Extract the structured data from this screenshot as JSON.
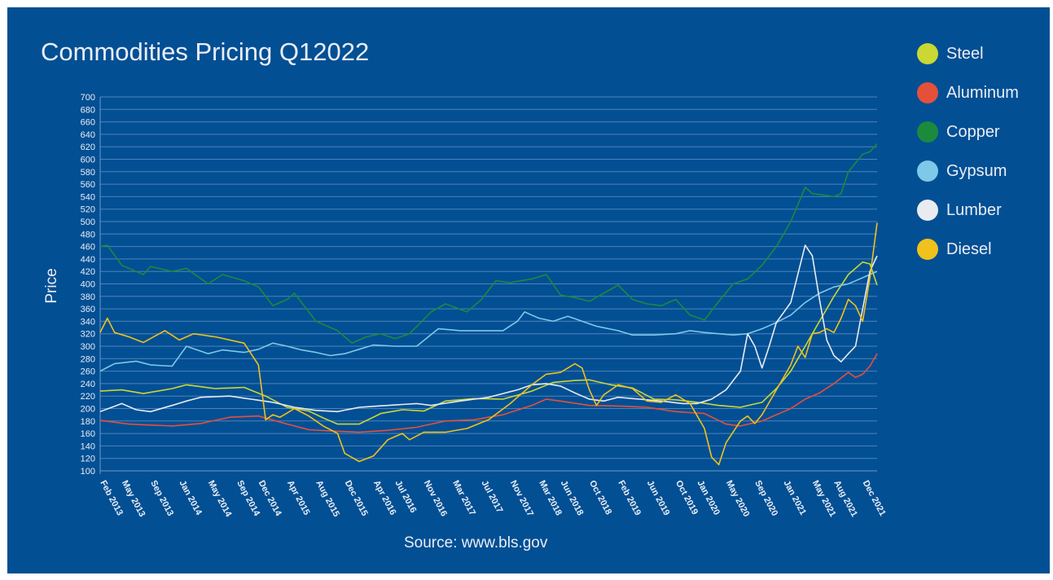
{
  "chart_data": {
    "type": "line",
    "title": "Commodities Pricing Q12022",
    "ylabel": "Price",
    "source": "Source: www.bls.gov",
    "ylim": [
      100,
      700
    ],
    "y_ticks": [
      100,
      120,
      140,
      160,
      180,
      200,
      220,
      240,
      260,
      280,
      300,
      320,
      340,
      360,
      380,
      400,
      420,
      440,
      460,
      480,
      500,
      520,
      540,
      560,
      580,
      600,
      620,
      640,
      660,
      680,
      700
    ],
    "x_ticks": [
      "Feb 2013",
      "May 2013",
      "Sep 2013",
      "Jan 2014",
      "May 2014",
      "Sep 2014",
      "Dec 2014",
      "Apr 2015",
      "Aug 2015",
      "Dec 2015",
      "Apr 2016",
      "Jul 2016",
      "Nov 2016",
      "Mar 2017",
      "Jul 2017",
      "Nov 2017",
      "Mar 2018",
      "Jun 2018",
      "Oct 2018",
      "Feb 2019",
      "Jun 2019",
      "Oct 2019",
      "Jan 2020",
      "May 2020",
      "Sep 2020",
      "Jan 2021",
      "May 2021",
      "Aug 2021",
      "Dec 2021"
    ],
    "x_tick_positions": [
      0,
      3,
      7,
      11,
      15,
      19,
      22,
      26,
      30,
      34,
      38,
      41,
      45,
      49,
      53,
      57,
      61,
      64,
      68,
      72,
      76,
      80,
      83,
      87,
      91,
      95,
      99,
      102,
      106
    ],
    "n_points": 109,
    "grid": true,
    "legend_position": "right",
    "series": [
      {
        "name": "Steel",
        "color": "#c9d833",
        "keyframes": [
          [
            0,
            228
          ],
          [
            3,
            230
          ],
          [
            6,
            224
          ],
          [
            10,
            232
          ],
          [
            12,
            238
          ],
          [
            16,
            232
          ],
          [
            20,
            234
          ],
          [
            23,
            220
          ],
          [
            26,
            202
          ],
          [
            29,
            196
          ],
          [
            31,
            185
          ],
          [
            33,
            175
          ],
          [
            36,
            175
          ],
          [
            39,
            192
          ],
          [
            42,
            198
          ],
          [
            45,
            196
          ],
          [
            48,
            212
          ],
          [
            52,
            216
          ],
          [
            56,
            215
          ],
          [
            60,
            228
          ],
          [
            63,
            242
          ],
          [
            66,
            245
          ],
          [
            68,
            246
          ],
          [
            71,
            238
          ],
          [
            74,
            233
          ],
          [
            77,
            215
          ],
          [
            80,
            214
          ],
          [
            83,
            210
          ],
          [
            86,
            205
          ],
          [
            89,
            202
          ],
          [
            92,
            210
          ],
          [
            94,
            232
          ],
          [
            96,
            260
          ],
          [
            98,
            300
          ],
          [
            100,
            340
          ],
          [
            102,
            380
          ],
          [
            104,
            415
          ],
          [
            106,
            435
          ],
          [
            107,
            432
          ],
          [
            108,
            398
          ]
        ]
      },
      {
        "name": "Aluminum",
        "color": "#e5503b",
        "keyframes": [
          [
            0,
            181
          ],
          [
            4,
            175
          ],
          [
            10,
            172
          ],
          [
            14,
            176
          ],
          [
            18,
            186
          ],
          [
            22,
            188
          ],
          [
            26,
            175
          ],
          [
            29,
            166
          ],
          [
            32,
            164
          ],
          [
            36,
            162
          ],
          [
            40,
            165
          ],
          [
            44,
            170
          ],
          [
            48,
            180
          ],
          [
            52,
            182
          ],
          [
            56,
            190
          ],
          [
            60,
            205
          ],
          [
            62,
            215
          ],
          [
            64,
            212
          ],
          [
            68,
            205
          ],
          [
            72,
            204
          ],
          [
            76,
            202
          ],
          [
            80,
            195
          ],
          [
            84,
            192
          ],
          [
            87,
            175
          ],
          [
            89,
            172
          ],
          [
            92,
            180
          ],
          [
            94,
            190
          ],
          [
            96,
            200
          ],
          [
            98,
            215
          ],
          [
            100,
            225
          ],
          [
            102,
            240
          ],
          [
            104,
            258
          ],
          [
            105,
            250
          ],
          [
            106,
            255
          ],
          [
            107,
            268
          ],
          [
            108,
            288
          ]
        ]
      },
      {
        "name": "Copper",
        "color": "#1c8a3d",
        "keyframes": [
          [
            0,
            460
          ],
          [
            1,
            462
          ],
          [
            3,
            430
          ],
          [
            6,
            415
          ],
          [
            7,
            428
          ],
          [
            10,
            420
          ],
          [
            12,
            425
          ],
          [
            15,
            400
          ],
          [
            17,
            415
          ],
          [
            20,
            405
          ],
          [
            22,
            395
          ],
          [
            24,
            365
          ],
          [
            26,
            375
          ],
          [
            27,
            385
          ],
          [
            30,
            340
          ],
          [
            33,
            325
          ],
          [
            35,
            305
          ],
          [
            37,
            315
          ],
          [
            39,
            320
          ],
          [
            41,
            312
          ],
          [
            43,
            320
          ],
          [
            46,
            355
          ],
          [
            48,
            368
          ],
          [
            51,
            355
          ],
          [
            53,
            375
          ],
          [
            55,
            405
          ],
          [
            57,
            402
          ],
          [
            60,
            408
          ],
          [
            62,
            415
          ],
          [
            64,
            382
          ],
          [
            66,
            378
          ],
          [
            68,
            372
          ],
          [
            70,
            385
          ],
          [
            72,
            398
          ],
          [
            74,
            375
          ],
          [
            76,
            368
          ],
          [
            78,
            365
          ],
          [
            80,
            375
          ],
          [
            82,
            350
          ],
          [
            84,
            342
          ],
          [
            86,
            372
          ],
          [
            88,
            400
          ],
          [
            90,
            408
          ],
          [
            92,
            430
          ],
          [
            94,
            460
          ],
          [
            96,
            500
          ],
          [
            98,
            555
          ],
          [
            99,
            545
          ],
          [
            102,
            540
          ],
          [
            103,
            545
          ],
          [
            104,
            580
          ],
          [
            106,
            608
          ],
          [
            107,
            612
          ],
          [
            108,
            625
          ]
        ]
      },
      {
        "name": "Gypsum",
        "color": "#7ec8e8",
        "keyframes": [
          [
            0,
            260
          ],
          [
            2,
            272
          ],
          [
            5,
            276
          ],
          [
            7,
            270
          ],
          [
            10,
            268
          ],
          [
            12,
            300
          ],
          [
            15,
            288
          ],
          [
            17,
            294
          ],
          [
            20,
            290
          ],
          [
            22,
            295
          ],
          [
            24,
            305
          ],
          [
            26,
            300
          ],
          [
            28,
            294
          ],
          [
            30,
            290
          ],
          [
            32,
            285
          ],
          [
            34,
            288
          ],
          [
            36,
            295
          ],
          [
            38,
            302
          ],
          [
            41,
            300
          ],
          [
            44,
            300
          ],
          [
            47,
            328
          ],
          [
            50,
            325
          ],
          [
            53,
            325
          ],
          [
            56,
            325
          ],
          [
            58,
            340
          ],
          [
            59,
            355
          ],
          [
            61,
            345
          ],
          [
            63,
            340
          ],
          [
            65,
            348
          ],
          [
            67,
            340
          ],
          [
            69,
            332
          ],
          [
            72,
            325
          ],
          [
            74,
            318
          ],
          [
            77,
            318
          ],
          [
            80,
            320
          ],
          [
            82,
            325
          ],
          [
            84,
            322
          ],
          [
            86,
            320
          ],
          [
            88,
            318
          ],
          [
            90,
            320
          ],
          [
            92,
            328
          ],
          [
            94,
            338
          ],
          [
            96,
            350
          ],
          [
            98,
            370
          ],
          [
            100,
            385
          ],
          [
            102,
            395
          ],
          [
            104,
            400
          ],
          [
            106,
            410
          ],
          [
            108,
            420
          ]
        ]
      },
      {
        "name": "Lumber",
        "color": "#e8ecf0",
        "keyframes": [
          [
            0,
            195
          ],
          [
            3,
            208
          ],
          [
            5,
            198
          ],
          [
            7,
            195
          ],
          [
            10,
            205
          ],
          [
            12,
            212
          ],
          [
            14,
            218
          ],
          [
            18,
            220
          ],
          [
            21,
            215
          ],
          [
            24,
            210
          ],
          [
            27,
            202
          ],
          [
            30,
            197
          ],
          [
            33,
            195
          ],
          [
            36,
            202
          ],
          [
            40,
            205
          ],
          [
            44,
            208
          ],
          [
            46,
            205
          ],
          [
            50,
            212
          ],
          [
            54,
            218
          ],
          [
            58,
            230
          ],
          [
            60,
            238
          ],
          [
            62,
            240
          ],
          [
            64,
            236
          ],
          [
            66,
            225
          ],
          [
            68,
            215
          ],
          [
            70,
            212
          ],
          [
            72,
            218
          ],
          [
            75,
            215
          ],
          [
            78,
            212
          ],
          [
            81,
            208
          ],
          [
            83,
            208
          ],
          [
            85,
            215
          ],
          [
            87,
            230
          ],
          [
            89,
            260
          ],
          [
            90,
            320
          ],
          [
            91,
            300
          ],
          [
            92,
            265
          ],
          [
            93,
            300
          ],
          [
            94,
            338
          ],
          [
            96,
            370
          ],
          [
            98,
            462
          ],
          [
            99,
            445
          ],
          [
            100,
            375
          ],
          [
            101,
            310
          ],
          [
            102,
            285
          ],
          [
            103,
            275
          ],
          [
            104,
            288
          ],
          [
            105,
            300
          ],
          [
            106,
            360
          ],
          [
            107,
            420
          ],
          [
            108,
            445
          ]
        ]
      },
      {
        "name": "Diesel",
        "color": "#f0c21b",
        "keyframes": [
          [
            0,
            322
          ],
          [
            1,
            345
          ],
          [
            2,
            322
          ],
          [
            4,
            315
          ],
          [
            6,
            306
          ],
          [
            9,
            325
          ],
          [
            11,
            310
          ],
          [
            13,
            320
          ],
          [
            16,
            315
          ],
          [
            18,
            310
          ],
          [
            20,
            305
          ],
          [
            22,
            270
          ],
          [
            23,
            182
          ],
          [
            24,
            190
          ],
          [
            25,
            186
          ],
          [
            27,
            200
          ],
          [
            29,
            188
          ],
          [
            31,
            172
          ],
          [
            33,
            160
          ],
          [
            34,
            128
          ],
          [
            36,
            115
          ],
          [
            38,
            124
          ],
          [
            40,
            150
          ],
          [
            42,
            160
          ],
          [
            43,
            150
          ],
          [
            45,
            162
          ],
          [
            48,
            162
          ],
          [
            51,
            168
          ],
          [
            54,
            182
          ],
          [
            57,
            208
          ],
          [
            60,
            238
          ],
          [
            62,
            255
          ],
          [
            64,
            258
          ],
          [
            66,
            272
          ],
          [
            67,
            265
          ],
          [
            68,
            230
          ],
          [
            69,
            205
          ],
          [
            70,
            222
          ],
          [
            72,
            238
          ],
          [
            74,
            232
          ],
          [
            76,
            212
          ],
          [
            78,
            210
          ],
          [
            80,
            222
          ],
          [
            82,
            208
          ],
          [
            84,
            168
          ],
          [
            85,
            122
          ],
          [
            86,
            110
          ],
          [
            87,
            145
          ],
          [
            89,
            180
          ],
          [
            90,
            188
          ],
          [
            91,
            176
          ],
          [
            92,
            190
          ],
          [
            94,
            230
          ],
          [
            96,
            270
          ],
          [
            97,
            300
          ],
          [
            98,
            282
          ],
          [
            99,
            320
          ],
          [
            100,
            322
          ],
          [
            101,
            328
          ],
          [
            102,
            322
          ],
          [
            103,
            345
          ],
          [
            104,
            375
          ],
          [
            105,
            365
          ],
          [
            106,
            340
          ],
          [
            107,
            410
          ],
          [
            108,
            498
          ]
        ]
      }
    ]
  }
}
